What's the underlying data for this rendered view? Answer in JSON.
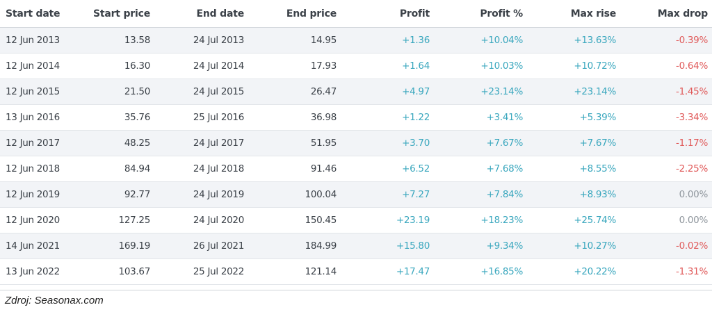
{
  "table": {
    "headers": [
      "Start date",
      "Start price",
      "End date",
      "End price",
      "Profit",
      "Profit %",
      "Max rise",
      "Max drop"
    ],
    "rows": [
      [
        "12 Jun 2013",
        "13.58",
        "24 Jul 2013",
        "14.95",
        "+1.36",
        "+10.04%",
        "+13.63%",
        "-0.39%"
      ],
      [
        "12 Jun 2014",
        "16.30",
        "24 Jul 2014",
        "17.93",
        "+1.64",
        "+10.03%",
        "+10.72%",
        "-0.64%"
      ],
      [
        "12 Jun 2015",
        "21.50",
        "24 Jul 2015",
        "26.47",
        "+4.97",
        "+23.14%",
        "+23.14%",
        "-1.45%"
      ],
      [
        "13 Jun 2016",
        "35.76",
        "25 Jul 2016",
        "36.98",
        "+1.22",
        "+3.41%",
        "+5.39%",
        "-3.34%"
      ],
      [
        "12 Jun 2017",
        "48.25",
        "24 Jul 2017",
        "51.95",
        "+3.70",
        "+7.67%",
        "+7.67%",
        "-1.17%"
      ],
      [
        "12 Jun 2018",
        "84.94",
        "24 Jul 2018",
        "91.46",
        "+6.52",
        "+7.68%",
        "+8.55%",
        "-2.25%"
      ],
      [
        "12 Jun 2019",
        "92.77",
        "24 Jul 2019",
        "100.04",
        "+7.27",
        "+7.84%",
        "+8.93%",
        "0.00%"
      ],
      [
        "12 Jun 2020",
        "127.25",
        "24 Jul 2020",
        "150.45",
        "+23.19",
        "+18.23%",
        "+25.74%",
        "0.00%"
      ],
      [
        "14 Jun 2021",
        "169.19",
        "26 Jul 2021",
        "184.99",
        "+15.80",
        "+9.34%",
        "+10.27%",
        "-0.02%"
      ],
      [
        "13 Jun 2022",
        "103.67",
        "25 Jul 2022",
        "121.14",
        "+17.47",
        "+16.85%",
        "+20.22%",
        "-1.31%"
      ]
    ]
  },
  "colors": {
    "positive": "#3aa7be",
    "negative": "#e05a5a",
    "zero": "#8e959c",
    "text": "#3b4148",
    "row_alt": "#f2f4f7"
  },
  "source": "Zdroj: Seasonax.com"
}
